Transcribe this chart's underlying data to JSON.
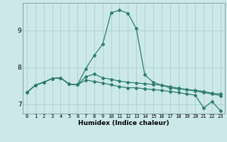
{
  "xlabel": "Humidex (Indice chaleur)",
  "xlim": [
    -0.5,
    23.5
  ],
  "ylim": [
    6.75,
    9.75
  ],
  "xticks": [
    0,
    1,
    2,
    3,
    4,
    5,
    6,
    7,
    8,
    9,
    10,
    11,
    12,
    13,
    14,
    15,
    16,
    17,
    18,
    19,
    20,
    21,
    22,
    23
  ],
  "yticks": [
    7,
    8,
    9
  ],
  "background_color": "#cce8e8",
  "grid_color": "#aed0d0",
  "line_color": "#2e7d6e",
  "lines": [
    [
      7.32,
      7.52,
      7.6,
      7.7,
      7.72,
      7.55,
      7.53,
      7.97,
      8.33,
      8.63,
      9.48,
      9.55,
      9.47,
      9.05,
      7.8,
      7.6,
      7.52,
      7.45,
      7.42,
      7.4,
      7.38,
      7.35,
      7.3,
      7.28
    ],
    [
      7.32,
      7.52,
      7.6,
      7.7,
      7.72,
      7.55,
      7.53,
      7.75,
      7.82,
      7.72,
      7.68,
      7.63,
      7.6,
      7.58,
      7.56,
      7.54,
      7.52,
      7.48,
      7.44,
      7.4,
      7.36,
      7.32,
      7.28,
      7.24
    ],
    [
      7.32,
      7.52,
      7.6,
      7.7,
      7.72,
      7.55,
      7.53,
      7.66,
      7.62,
      7.58,
      7.53,
      7.48,
      7.45,
      7.45,
      7.42,
      7.4,
      7.38,
      7.35,
      7.32,
      7.28,
      7.25,
      6.9,
      7.08,
      6.82
    ]
  ],
  "xlabel_fontsize": 6.5,
  "xtick_fontsize": 5.0,
  "ytick_fontsize": 6.5
}
